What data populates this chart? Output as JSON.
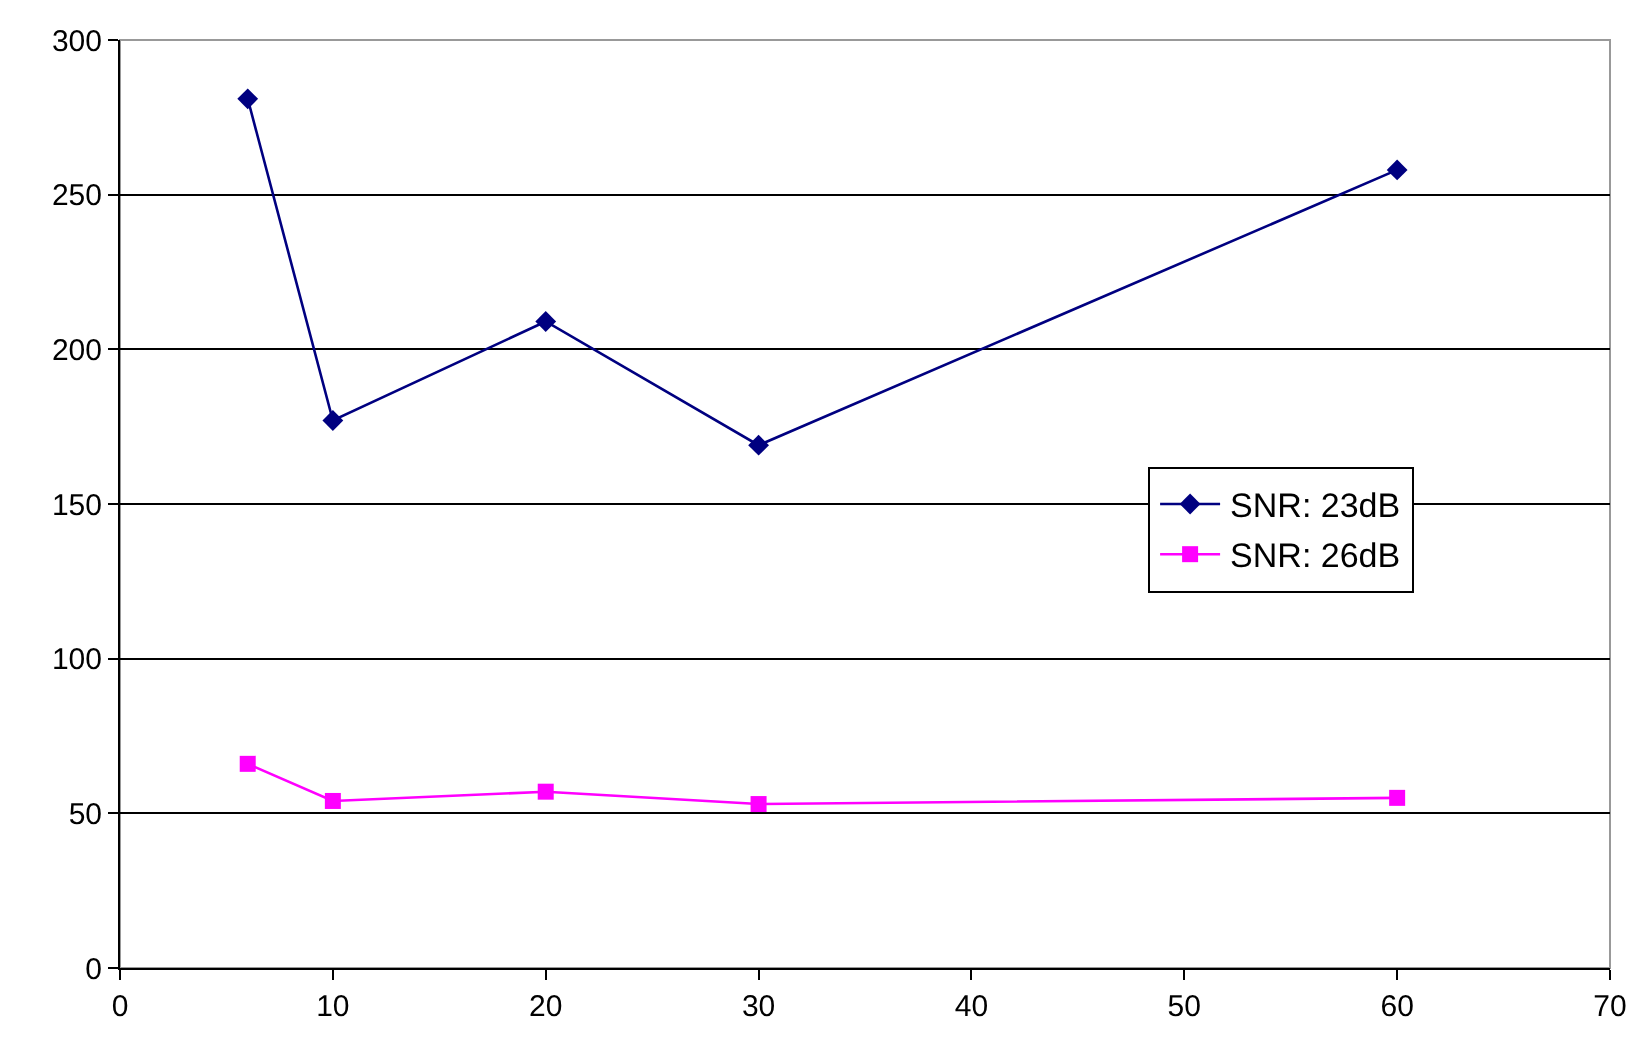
{
  "chart_data": {
    "type": "line",
    "x": [
      6,
      10,
      20,
      30,
      60
    ],
    "series": [
      {
        "name": "SNR: 23dB",
        "color": "#000080",
        "marker": "diamond",
        "values": [
          281,
          177,
          209,
          169,
          258
        ]
      },
      {
        "name": "SNR: 26dB",
        "color": "#ff00ff",
        "marker": "square",
        "values": [
          66,
          54,
          57,
          53,
          55
        ]
      }
    ],
    "xlim": [
      0,
      70
    ],
    "xticks": [
      0,
      10,
      20,
      30,
      40,
      50,
      60,
      70
    ],
    "ylim": [
      0,
      300
    ],
    "yticks": [
      0,
      50,
      100,
      150,
      200,
      250,
      300
    ],
    "grid": "y",
    "legend": "right",
    "line_style": "solid"
  }
}
